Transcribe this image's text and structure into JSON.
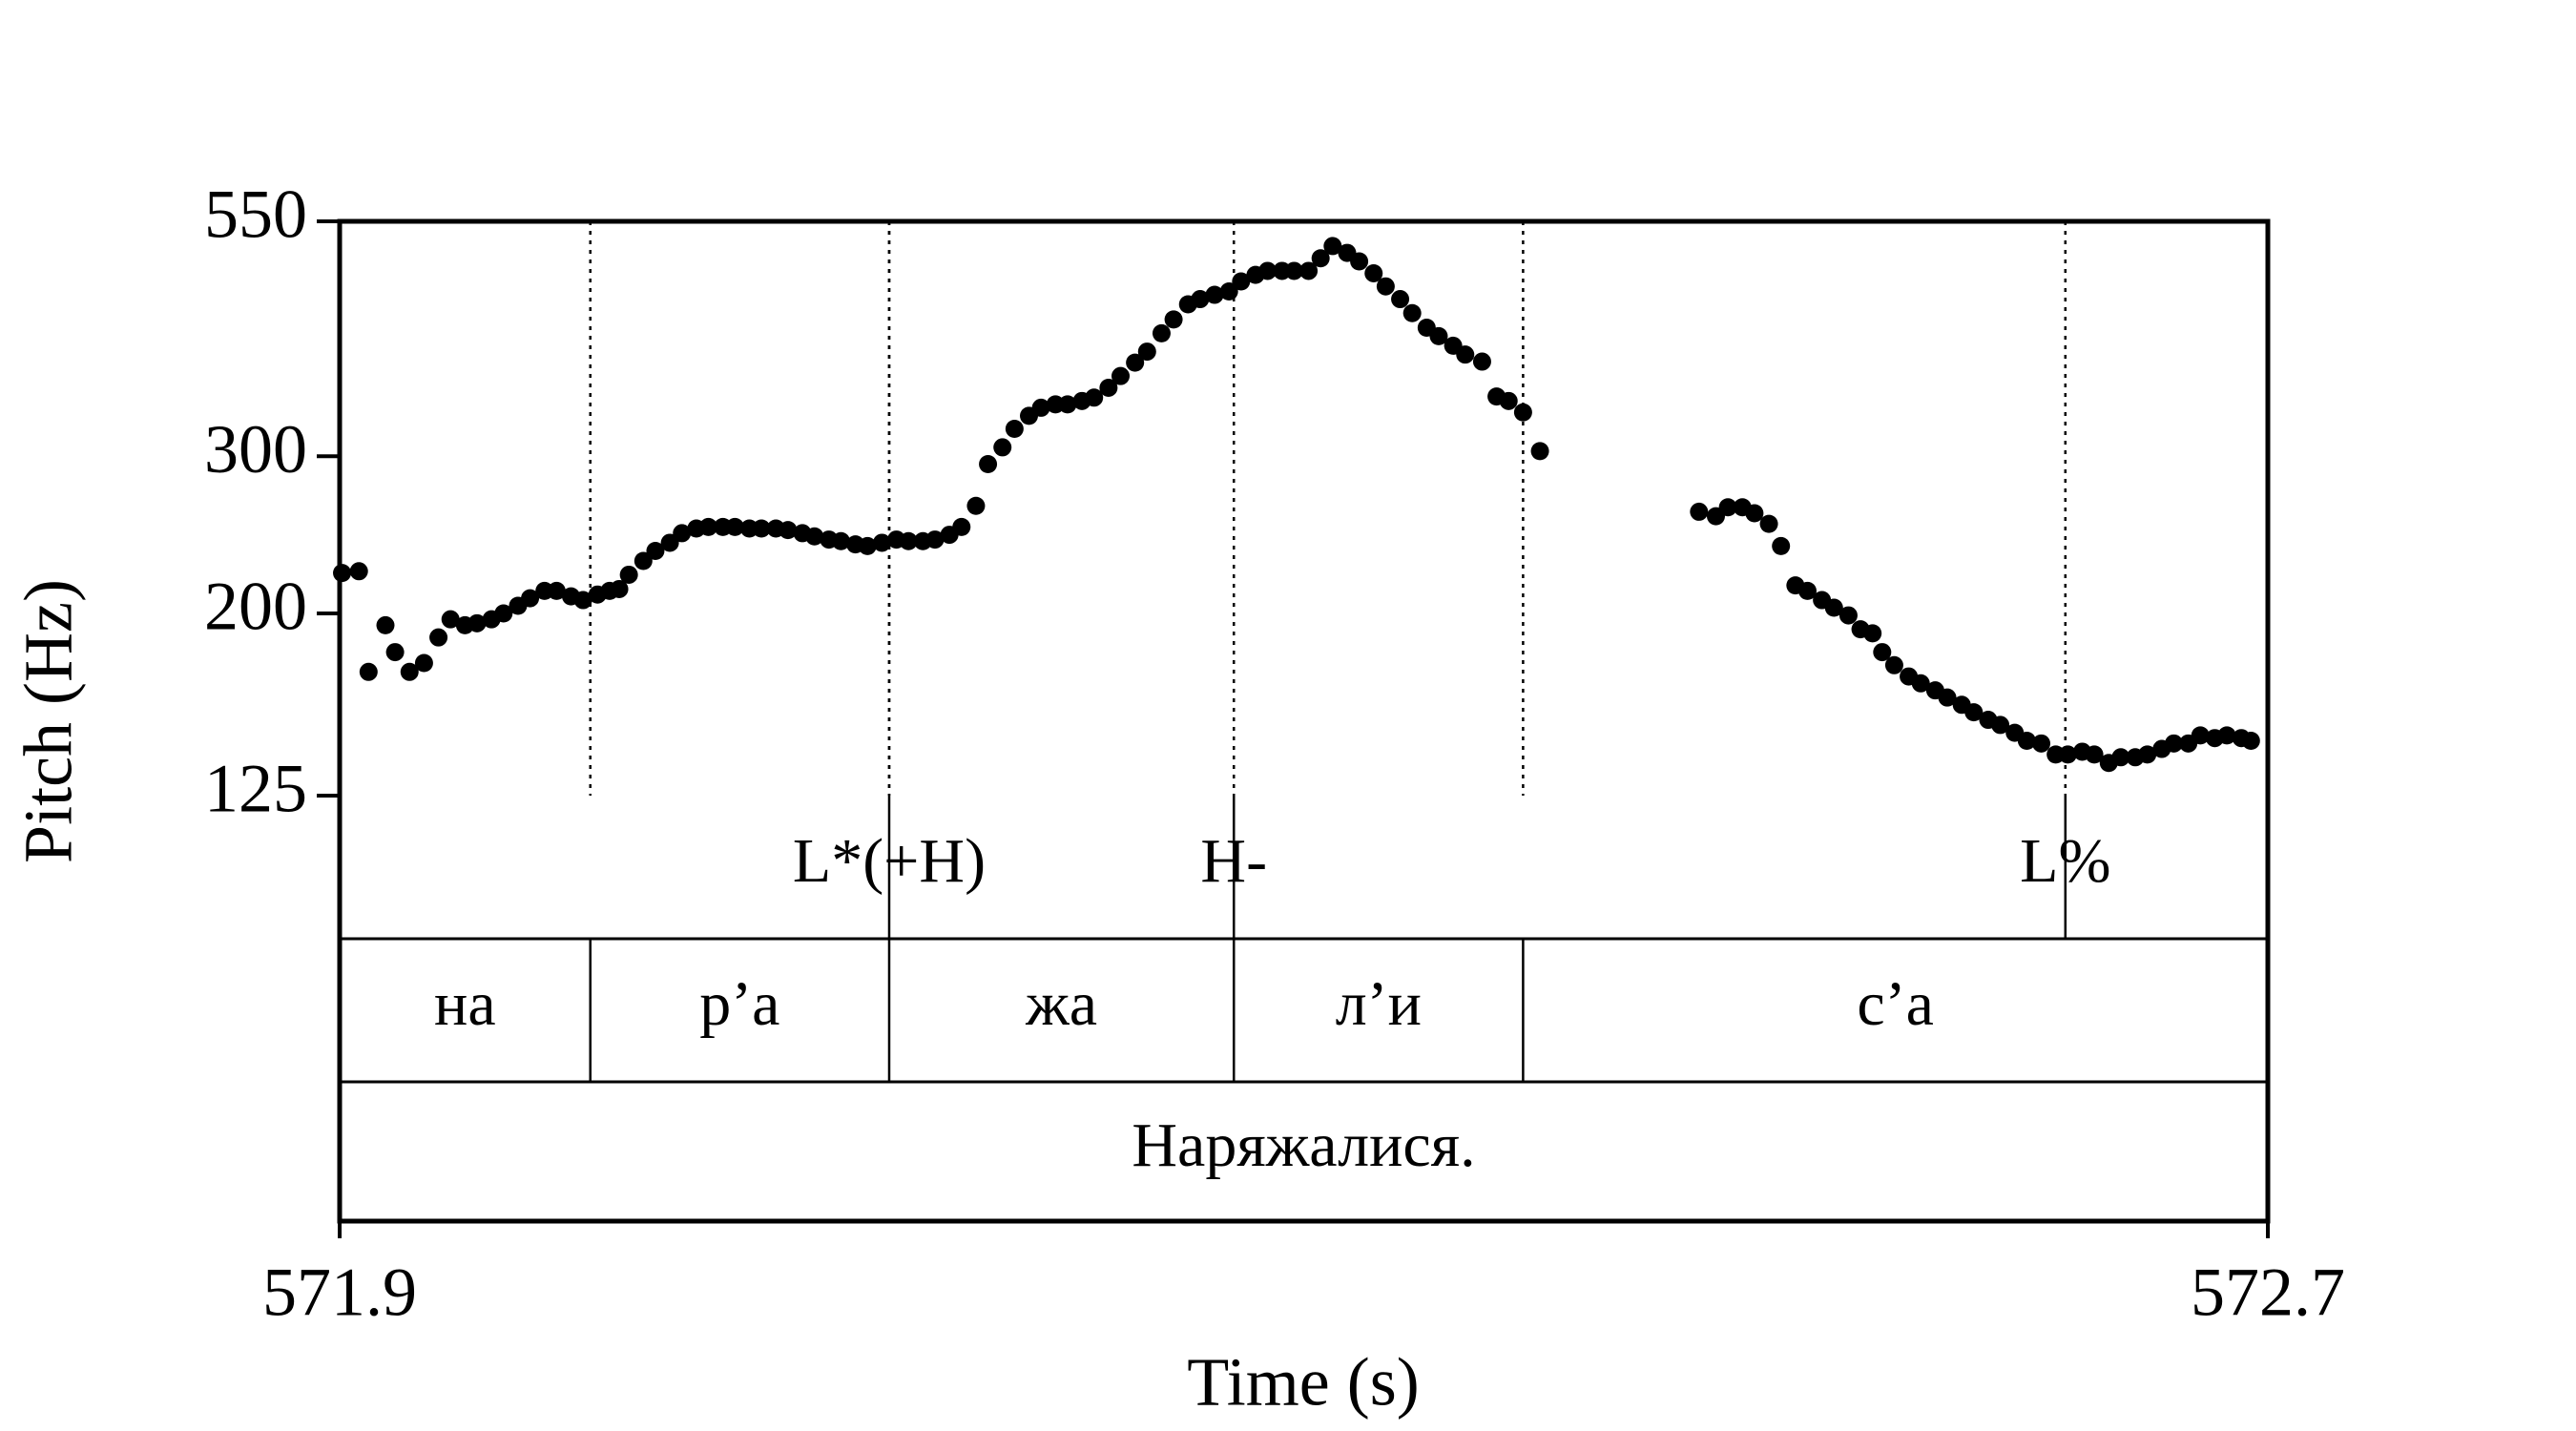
{
  "chart_data": {
    "type": "scatter",
    "x_label": "Time (s)",
    "y_label": "Pitch (Hz)",
    "xlim": [
      571.9,
      572.7
    ],
    "xticks": [
      571.9,
      572.7
    ],
    "ylim": [
      125,
      550
    ],
    "yticks": [
      125,
      200,
      300,
      550
    ],
    "log_y": true,
    "color": "#000000",
    "x": [
      571.901,
      571.908,
      571.912,
      571.919,
      571.923,
      571.929,
      571.935,
      571.941,
      571.946,
      571.952,
      571.957,
      571.963,
      571.968,
      571.974,
      571.979,
      571.985,
      571.99,
      571.996,
      572.001,
      572.007,
      572.012,
      572.016,
      572.02,
      572.026,
      572.031,
      572.037,
      572.042,
      572.048,
      572.053,
      572.059,
      572.064,
      572.07,
      572.075,
      572.081,
      572.086,
      572.092,
      572.097,
      572.103,
      572.108,
      572.114,
      572.119,
      572.125,
      572.131,
      572.136,
      572.142,
      572.147,
      572.153,
      572.158,
      572.164,
      572.169,
      572.175,
      572.18,
      572.186,
      572.191,
      572.197,
      572.202,
      572.208,
      572.213,
      572.219,
      572.224,
      572.23,
      572.235,
      572.241,
      572.246,
      572.252,
      572.257,
      572.263,
      572.269,
      572.274,
      572.28,
      572.285,
      572.291,
      572.296,
      572.302,
      572.307,
      572.312,
      572.318,
      572.323,
      572.329,
      572.334,
      572.34,
      572.345,
      572.351,
      572.356,
      572.362,
      572.367,
      572.374,
      572.38,
      572.385,
      572.391,
      572.398,
      572.464,
      572.471,
      572.476,
      572.482,
      572.487,
      572.493,
      572.498,
      572.504,
      572.509,
      572.515,
      572.52,
      572.526,
      572.531,
      572.536,
      572.54,
      572.545,
      572.551,
      572.556,
      572.562,
      572.567,
      572.573,
      572.578,
      572.584,
      572.589,
      572.595,
      572.6,
      572.606,
      572.612,
      572.617,
      572.623,
      572.628,
      572.634,
      572.639,
      572.645,
      572.65,
      572.656,
      572.661,
      572.667,
      572.672,
      572.678,
      572.683,
      572.689,
      572.693
    ],
    "values": [
      222,
      223,
      172,
      194,
      181,
      172,
      176,
      188,
      197,
      194,
      195,
      197,
      200,
      204,
      208,
      212,
      212,
      209,
      207,
      210,
      212,
      213,
      221,
      229,
      235,
      240,
      246,
      249,
      250,
      250,
      250,
      249,
      249,
      249,
      248,
      246,
      244,
      242,
      241,
      239,
      238,
      240,
      242,
      241,
      241,
      242,
      245,
      250,
      264,
      294,
      307,
      322,
      333,
      340,
      343,
      343,
      346,
      349,
      358,
      369,
      382,
      393,
      412,
      427,
      444,
      450,
      455,
      459,
      471,
      479,
      484,
      484,
      484,
      484,
      500,
      516,
      507,
      496,
      481,
      465,
      450,
      434,
      418,
      409,
      399,
      390,
      383,
      350,
      346,
      336,
      304,
      260,
      257,
      263,
      263,
      259,
      252,
      238,
      215,
      212,
      207,
      203,
      199,
      192,
      190,
      181,
      175,
      170,
      167,
      164,
      161,
      158,
      155,
      152,
      150,
      147,
      144,
      143,
      139,
      139,
      140,
      139,
      136,
      138,
      138,
      139,
      141,
      143,
      143,
      146,
      145,
      146,
      145,
      144
    ],
    "tiers": [
      {
        "type": "point",
        "points": [
          {
            "time": 572.128,
            "label": "L*(+H)"
          },
          {
            "time": 572.271,
            "label": "H-"
          },
          {
            "time": 572.616,
            "label": "L%"
          }
        ]
      },
      {
        "type": "interval",
        "boundaries": [
          572.004,
          572.128,
          572.271,
          572.391
        ],
        "labels": [
          "на",
          "р’а",
          "жа",
          "л’и",
          "с’а"
        ]
      },
      {
        "type": "interval",
        "boundaries": [],
        "labels": [
          "Наряжалися."
        ]
      }
    ]
  }
}
